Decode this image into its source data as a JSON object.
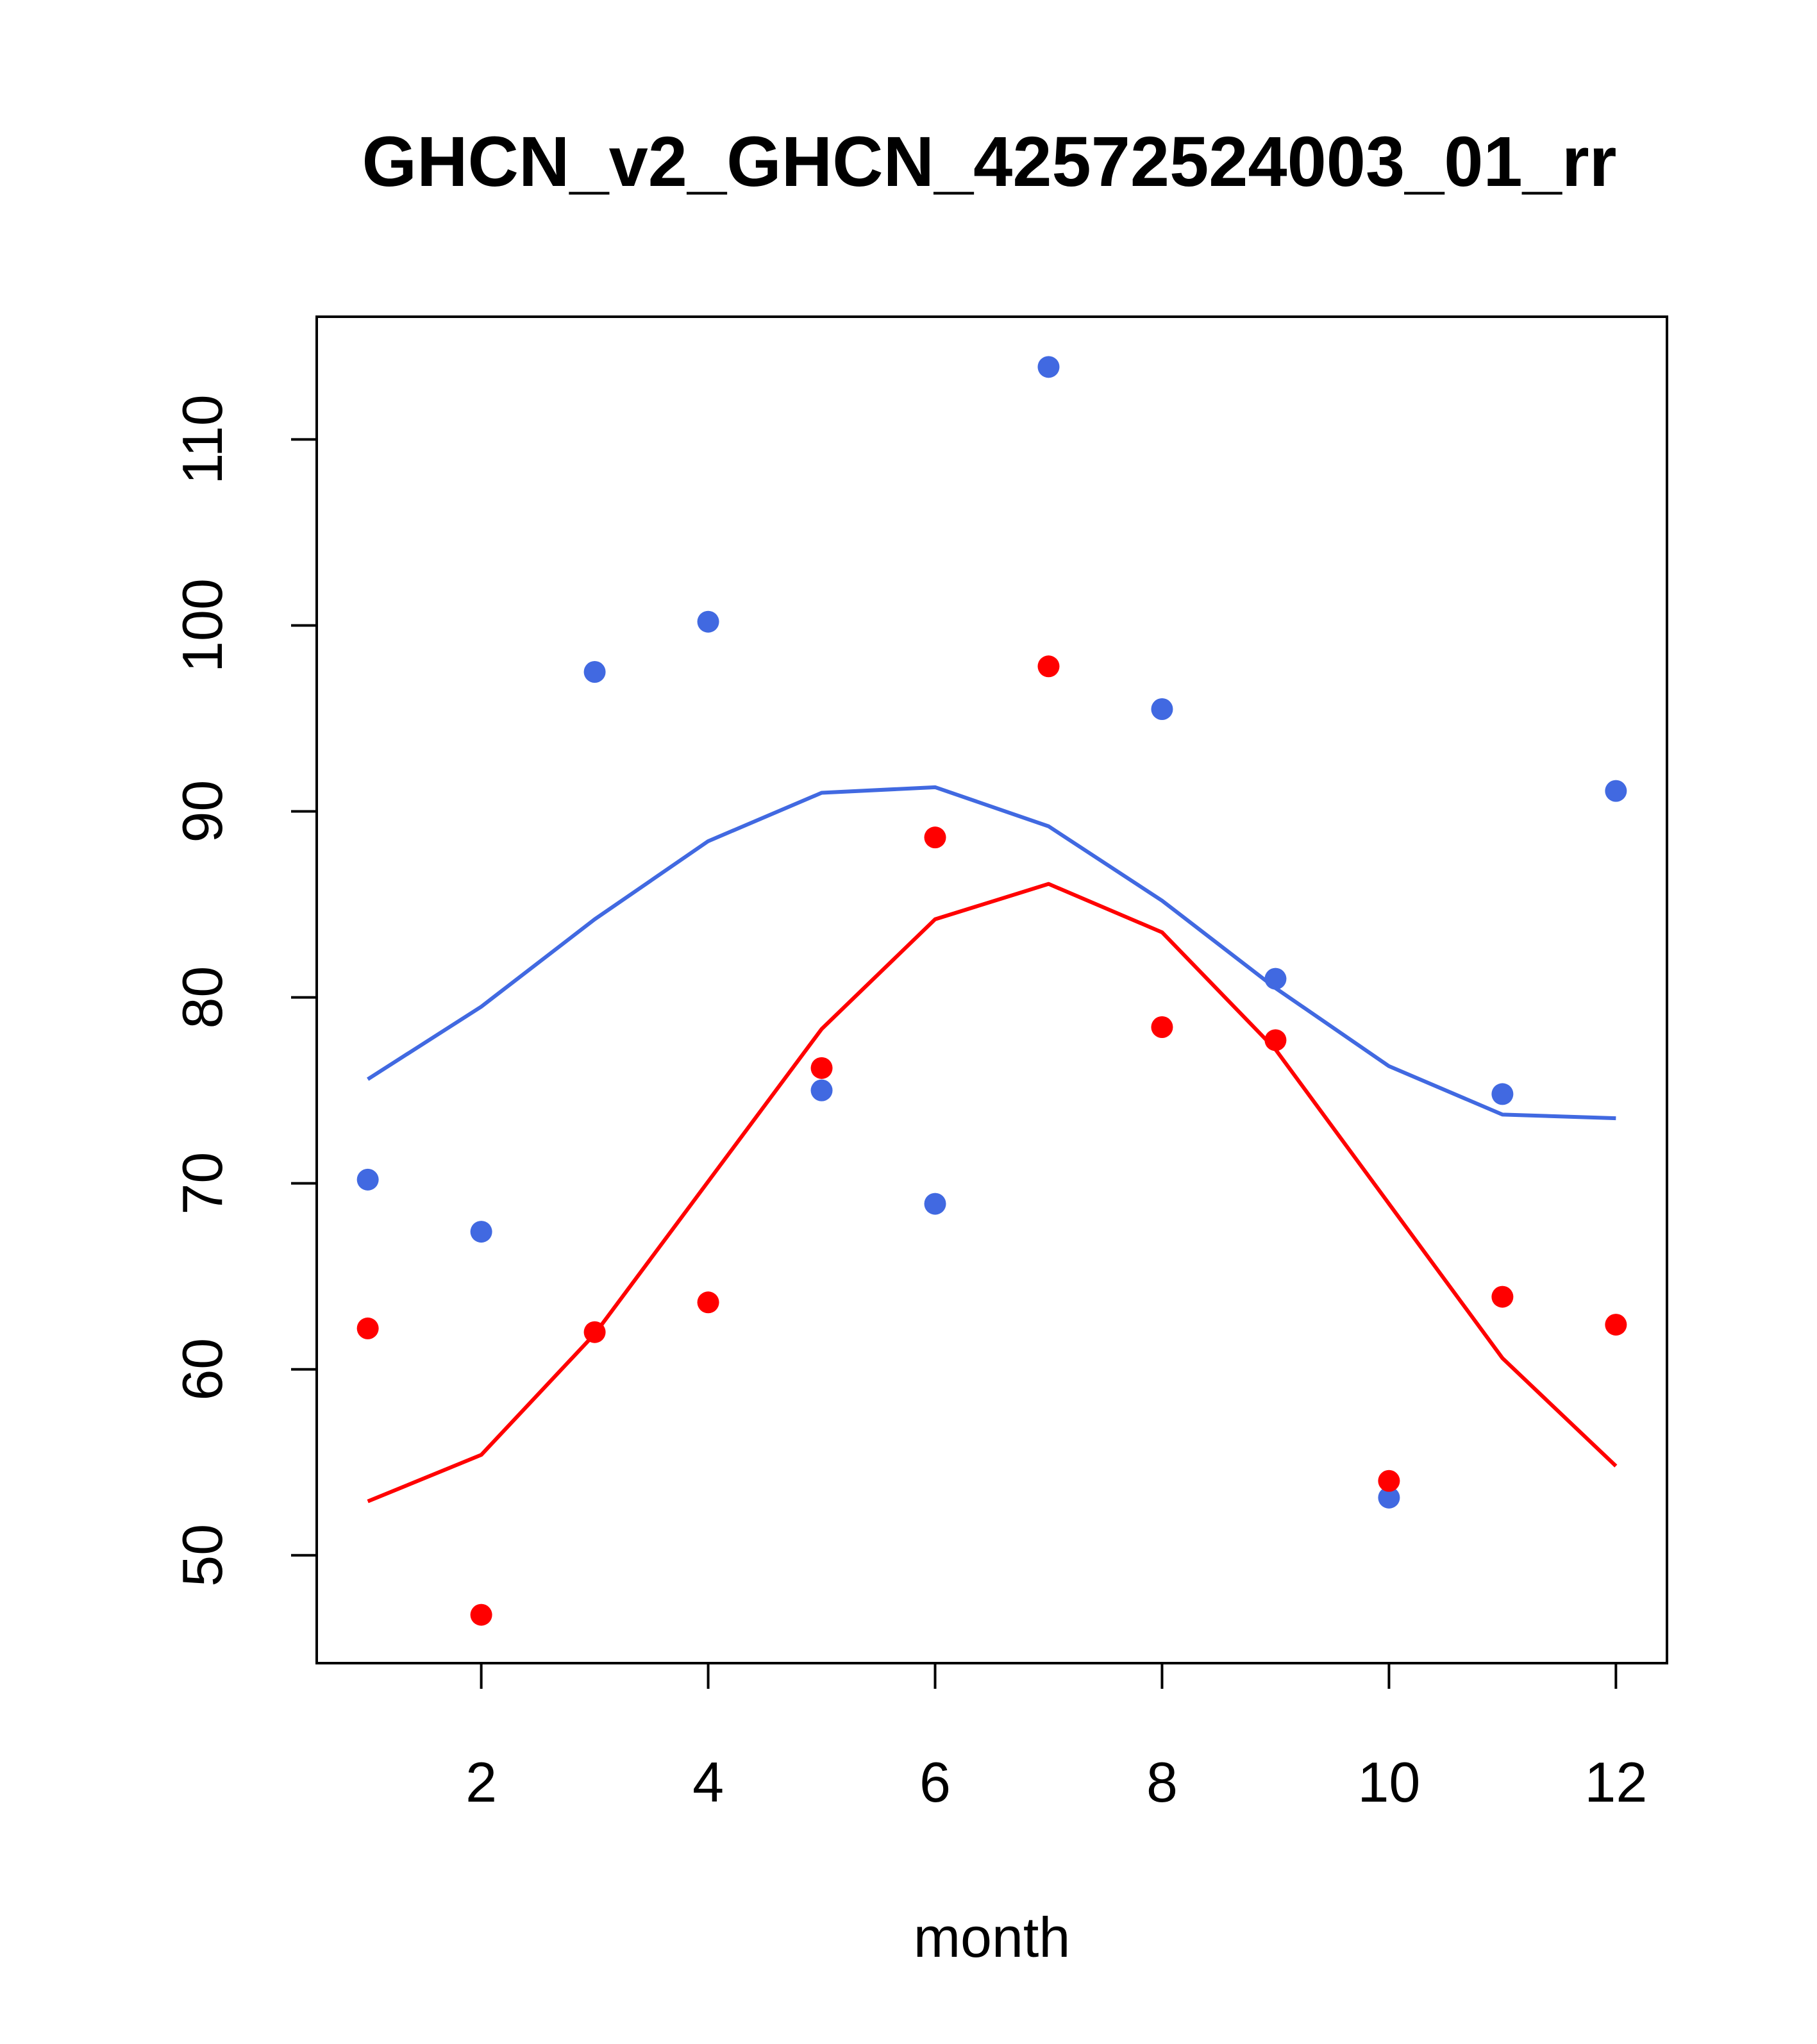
{
  "chart_data": {
    "type": "scatter",
    "title": "GHCN_v2_GHCN_42572524003_01_rr",
    "xlabel": "month",
    "ylabel": "",
    "xlim": [
      0.55,
      12.45
    ],
    "ylim": [
      44.2,
      116.6
    ],
    "xticks": [
      2,
      4,
      6,
      8,
      10,
      12
    ],
    "yticks": [
      50,
      60,
      70,
      80,
      90,
      100,
      110
    ],
    "grid": false,
    "legend": "none",
    "x": [
      1,
      2,
      3,
      4,
      5,
      6,
      7,
      8,
      9,
      10,
      11,
      12
    ],
    "series": [
      {
        "color": "#4169e1",
        "points": [
          70.2,
          67.4,
          97.5,
          100.2,
          75.0,
          68.9,
          113.9,
          95.5,
          81.0,
          53.1,
          74.8,
          91.1
        ],
        "line": [
          75.6,
          79.5,
          84.2,
          88.4,
          91.0,
          91.3,
          89.2,
          85.2,
          80.5,
          76.3,
          73.7,
          73.5
        ]
      },
      {
        "color": "#ff0000",
        "points": [
          62.2,
          46.8,
          62.0,
          63.6,
          76.2,
          88.6,
          97.8,
          78.4,
          77.7,
          54.0,
          63.9,
          62.4
        ],
        "line": [
          52.9,
          55.4,
          61.9,
          70.1,
          78.3,
          84.2,
          86.1,
          83.5,
          77.2,
          68.9,
          60.6,
          54.8
        ]
      }
    ]
  }
}
